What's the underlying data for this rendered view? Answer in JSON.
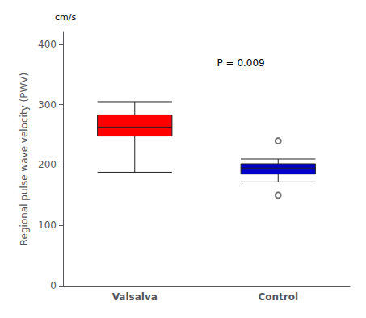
{
  "chart_data": {
    "type": "box",
    "categories": [
      "Valsalva",
      "Control"
    ],
    "boxes": [
      {
        "whisker_low": 188,
        "q1": 248,
        "median": 263,
        "q3": 283,
        "whisker_high": 305,
        "outliers": []
      },
      {
        "whisker_low": 172,
        "q1": 185,
        "median": 195,
        "q3": 202,
        "whisker_high": 210,
        "outliers": [
          150,
          240
        ]
      }
    ],
    "colors": [
      "#FF0000",
      "#0000CC"
    ],
    "ylabel": "Regional pulse wave velocity (PWV)",
    "y_unit": "cm/s",
    "annotation": "P = 0.009",
    "ylim": [
      0,
      420
    ],
    "yticks": [
      0,
      100,
      200,
      300,
      400
    ],
    "grid": false
  }
}
